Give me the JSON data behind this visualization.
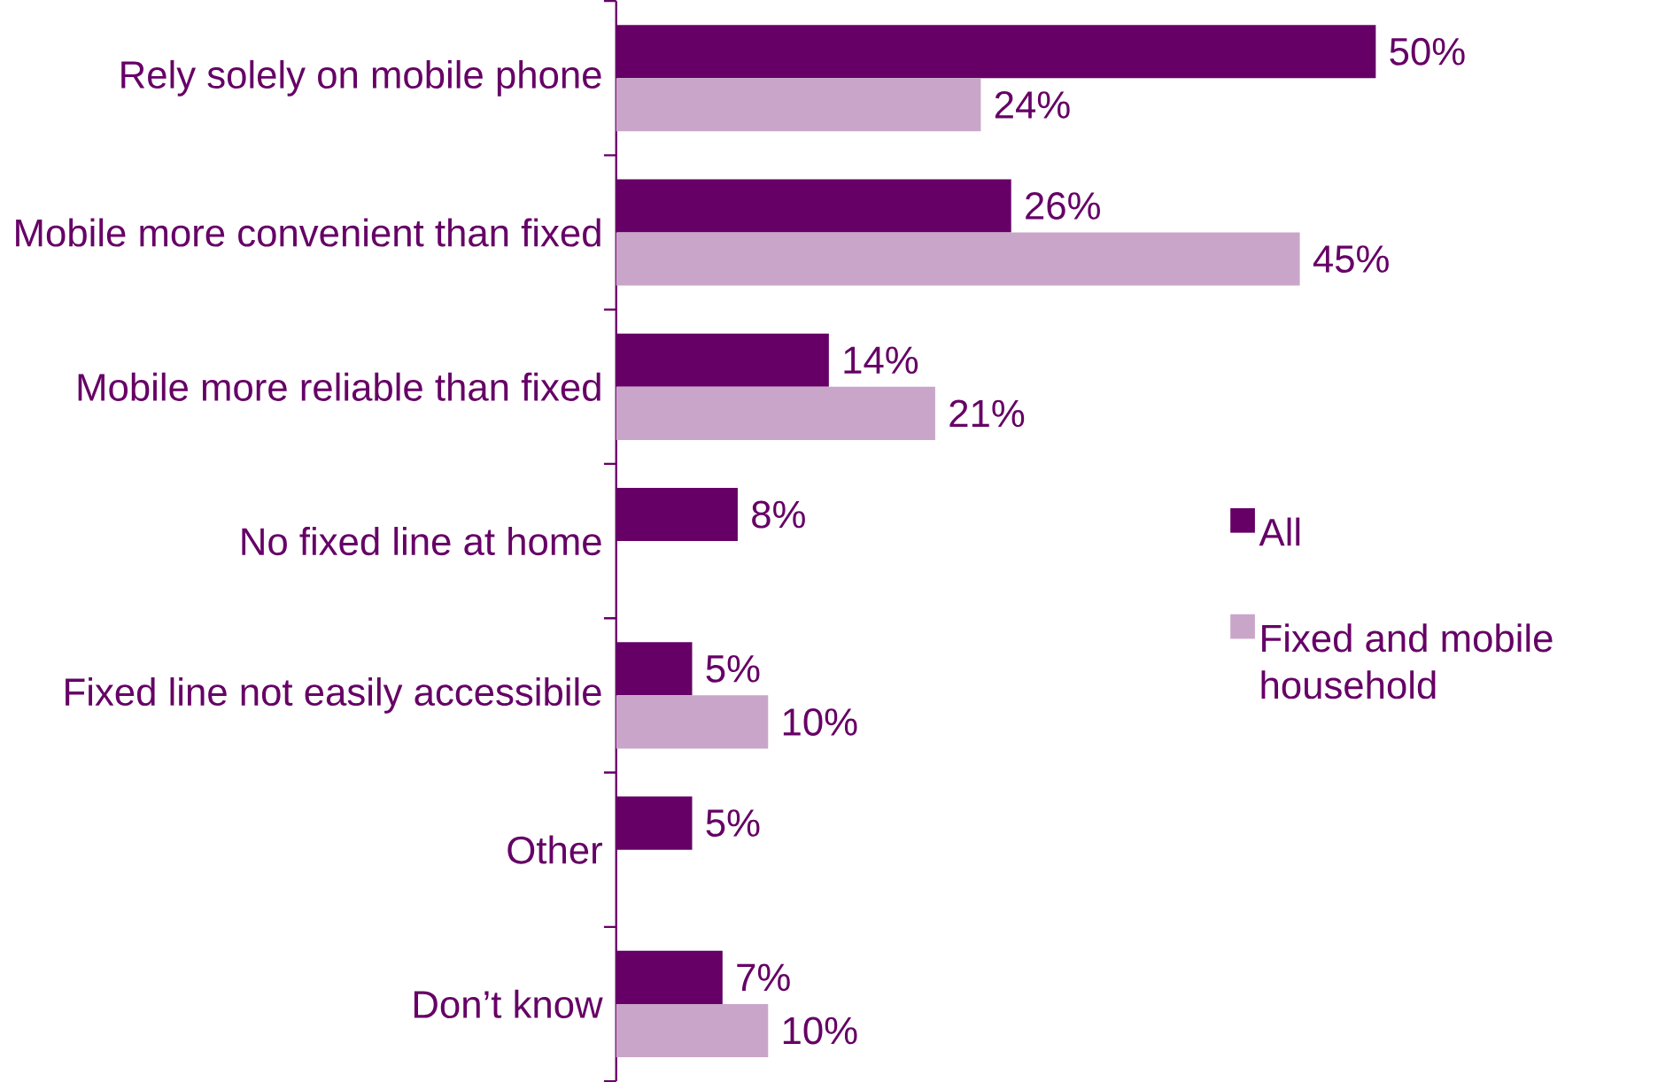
{
  "chart_data": {
    "type": "bar",
    "orientation": "horizontal",
    "categories": [
      "Rely solely on mobile phone",
      "Mobile more convenient than fixed",
      "Mobile more reliable than fixed",
      "No fixed line at home",
      "Fixed line not easily accessibile",
      "Other",
      "Don’t know"
    ],
    "series": [
      {
        "name": "All",
        "color": "#660066",
        "values": [
          50,
          26,
          14,
          8,
          5,
          5,
          7
        ],
        "value_labels": [
          "50%",
          "26%",
          "14%",
          "8%",
          "5%",
          "5%",
          "7%"
        ]
      },
      {
        "name": "Fixed and mobile household",
        "color": "#c9a6c9",
        "values": [
          24,
          45,
          21,
          null,
          10,
          null,
          10
        ],
        "value_labels": [
          "24%",
          "45%",
          "21%",
          null,
          "10%",
          null,
          "10%"
        ]
      }
    ],
    "legend": "right",
    "grid": false
  }
}
